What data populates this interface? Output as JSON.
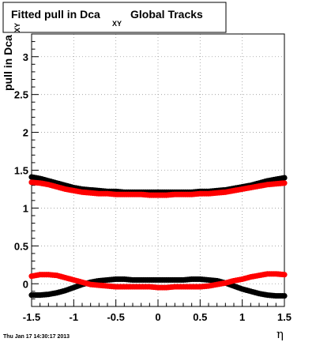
{
  "chart_data": {
    "type": "scatter",
    "title_main": "Fitted pull in Dca",
    "title_sub": "XY",
    "title_rest": "Global Tracks",
    "ylabel_main": "pull in Dca",
    "ylabel_sub": "XY",
    "xlabel": "η",
    "xlim": [
      -1.5,
      1.5
    ],
    "ylim": [
      -0.3,
      3.3
    ],
    "grid": true,
    "x_ticks": [
      -1.5,
      -1,
      -0.5,
      0,
      0.5,
      1,
      1.5
    ],
    "x_tick_labels": [
      "-1.5",
      "-1",
      "-0.5",
      "0",
      "0.5",
      "1",
      "1.5"
    ],
    "y_ticks": [
      0,
      0.5,
      1,
      1.5,
      2,
      2.5,
      3
    ],
    "y_tick_labels": [
      "0",
      "0.5",
      "1",
      "1.5",
      "2",
      "2.5",
      "3"
    ],
    "series": [
      {
        "color": "#000000",
        "role": "sigma",
        "x": [
          -1.5,
          -1.4,
          -1.3,
          -1.2,
          -1.1,
          -1.0,
          -0.9,
          -0.8,
          -0.7,
          -0.6,
          -0.5,
          -0.4,
          -0.3,
          -0.2,
          -0.1,
          0.0,
          0.1,
          0.2,
          0.3,
          0.4,
          0.5,
          0.6,
          0.7,
          0.8,
          0.9,
          1.0,
          1.1,
          1.2,
          1.3,
          1.4,
          1.5
        ],
        "y": [
          1.41,
          1.39,
          1.36,
          1.33,
          1.3,
          1.27,
          1.25,
          1.24,
          1.23,
          1.22,
          1.22,
          1.21,
          1.21,
          1.21,
          1.21,
          1.21,
          1.21,
          1.21,
          1.21,
          1.21,
          1.22,
          1.22,
          1.23,
          1.24,
          1.26,
          1.28,
          1.3,
          1.33,
          1.36,
          1.38,
          1.4
        ]
      },
      {
        "color": "#ff0000",
        "role": "sigma",
        "x": [
          -1.5,
          -1.4,
          -1.3,
          -1.2,
          -1.1,
          -1.0,
          -0.9,
          -0.8,
          -0.7,
          -0.6,
          -0.5,
          -0.4,
          -0.3,
          -0.2,
          -0.1,
          0.0,
          0.1,
          0.2,
          0.3,
          0.4,
          0.5,
          0.6,
          0.7,
          0.8,
          0.9,
          1.0,
          1.1,
          1.2,
          1.3,
          1.4,
          1.5
        ],
        "y": [
          1.34,
          1.33,
          1.31,
          1.28,
          1.25,
          1.23,
          1.21,
          1.2,
          1.19,
          1.19,
          1.18,
          1.18,
          1.18,
          1.18,
          1.17,
          1.17,
          1.17,
          1.18,
          1.18,
          1.18,
          1.19,
          1.19,
          1.2,
          1.21,
          1.23,
          1.25,
          1.27,
          1.29,
          1.31,
          1.32,
          1.33
        ]
      },
      {
        "color": "#000000",
        "role": "mean",
        "x": [
          -1.5,
          -1.4,
          -1.3,
          -1.2,
          -1.1,
          -1.0,
          -0.9,
          -0.8,
          -0.7,
          -0.6,
          -0.5,
          -0.4,
          -0.3,
          -0.2,
          -0.1,
          0.0,
          0.1,
          0.2,
          0.3,
          0.4,
          0.5,
          0.6,
          0.7,
          0.8,
          0.9,
          1.0,
          1.1,
          1.2,
          1.3,
          1.4,
          1.5
        ],
        "y": [
          -0.15,
          -0.15,
          -0.14,
          -0.12,
          -0.09,
          -0.05,
          -0.01,
          0.02,
          0.04,
          0.05,
          0.06,
          0.06,
          0.05,
          0.05,
          0.05,
          0.05,
          0.05,
          0.05,
          0.05,
          0.06,
          0.06,
          0.05,
          0.04,
          0.01,
          -0.03,
          -0.07,
          -0.1,
          -0.13,
          -0.15,
          -0.16,
          -0.16
        ]
      },
      {
        "color": "#ff0000",
        "role": "mean",
        "x": [
          -1.5,
          -1.4,
          -1.3,
          -1.2,
          -1.1,
          -1.0,
          -0.9,
          -0.8,
          -0.7,
          -0.6,
          -0.5,
          -0.4,
          -0.3,
          -0.2,
          -0.1,
          0.0,
          0.1,
          0.2,
          0.3,
          0.4,
          0.5,
          0.6,
          0.7,
          0.8,
          0.9,
          1.0,
          1.1,
          1.2,
          1.3,
          1.4,
          1.5
        ],
        "y": [
          0.1,
          0.12,
          0.12,
          0.11,
          0.08,
          0.05,
          0.02,
          -0.01,
          -0.02,
          -0.03,
          -0.04,
          -0.04,
          -0.04,
          -0.04,
          -0.04,
          -0.05,
          -0.05,
          -0.04,
          -0.04,
          -0.04,
          -0.04,
          -0.03,
          -0.01,
          0.01,
          0.04,
          0.06,
          0.09,
          0.11,
          0.13,
          0.13,
          0.12
        ]
      }
    ]
  },
  "footer": {
    "timestamp": "Thu Jan 17 14:30:17 2013"
  }
}
